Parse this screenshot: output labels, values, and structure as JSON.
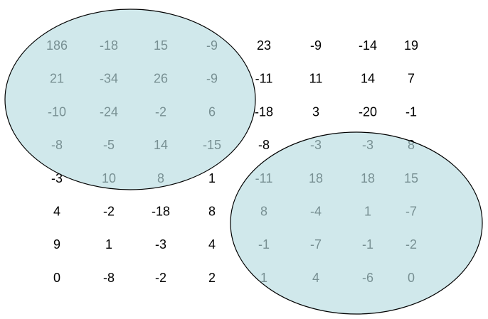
{
  "matrix": {
    "rows": [
      [
        "186",
        "-18",
        "15",
        "-9",
        "23",
        "-9",
        "-14",
        "19"
      ],
      [
        "21",
        "-34",
        "26",
        "-9",
        "-11",
        "11",
        "14",
        "7"
      ],
      [
        "-10",
        "-24",
        "-2",
        "6",
        "-18",
        "3",
        "-20",
        "-1"
      ],
      [
        "-8",
        "-5",
        "14",
        "-15",
        "-8",
        "-3",
        "-3",
        "8"
      ],
      [
        "-3",
        "10",
        "8",
        "1",
        "-11",
        "18",
        "18",
        "15"
      ],
      [
        "4",
        "-2",
        "-18",
        "8",
        "8",
        "-4",
        "1",
        "-7"
      ],
      [
        "9",
        "1",
        "-3",
        "4",
        "-1",
        "-7",
        "-1",
        "-2"
      ],
      [
        "0",
        "-8",
        "-2",
        "2",
        "1",
        "4",
        "-6",
        "0"
      ]
    ]
  },
  "colors": {
    "text": "#000000",
    "highlight_fill": "#b7dbe0",
    "highlight_stroke": "#000000"
  }
}
